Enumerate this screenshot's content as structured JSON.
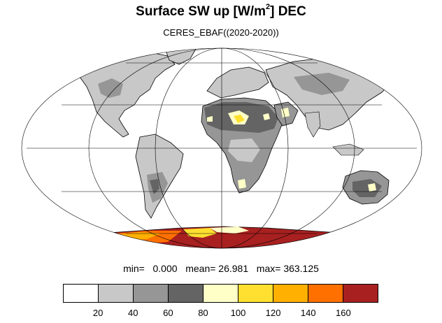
{
  "title": {
    "prefix": "Surface SW up [W/m",
    "superscript": "2",
    "suffix": "]  DEC"
  },
  "subtitle": "CERES_EBAF((2020-2020))",
  "stats": {
    "min_label": "min=",
    "min": "0.000",
    "mean_label": "mean=",
    "mean": "26.981",
    "max_label": "max=",
    "max": "363.125"
  },
  "colorbar": {
    "colors": [
      "#ffffff",
      "#c8c8c8",
      "#969696",
      "#646464",
      "#ffffc8",
      "#ffe030",
      "#ffb000",
      "#ff7000",
      "#a82020"
    ],
    "labels": [
      "20",
      "40",
      "60",
      "80",
      "100",
      "120",
      "140",
      "160"
    ]
  },
  "map": {
    "projection": "mollweide",
    "ocean_color": "#ffffff",
    "land_outline_color": "#000000",
    "graticule_color": "#000000"
  }
}
